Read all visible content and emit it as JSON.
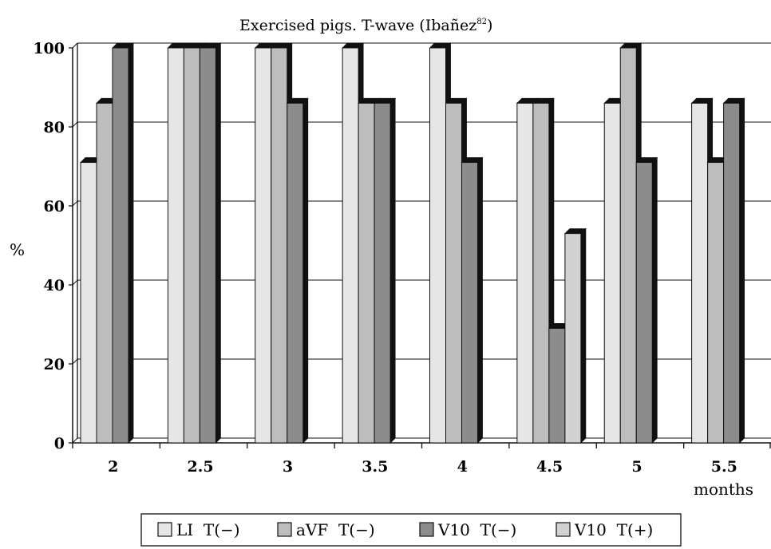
{
  "chart_data": {
    "type": "bar",
    "title": "Exercised pigs. T-wave (Ibañez",
    "title_sup": "82",
    "title_close": ")",
    "ylabel": "%",
    "xlabel": "months",
    "ylim": [
      0,
      100
    ],
    "yticks": [
      0,
      20,
      40,
      60,
      80,
      100
    ],
    "grid": true,
    "legend_position": "bottom",
    "categories": [
      "2",
      "2.5",
      "3",
      "3.5",
      "4",
      "4.5",
      "5",
      "5.5"
    ],
    "series": [
      {
        "name": "LI  T(−)",
        "color": "#e6e6e6",
        "values": [
          71,
          100,
          100,
          100,
          100,
          86,
          86,
          86
        ]
      },
      {
        "name": "aVF  T(−)",
        "color": "#bdbdbd",
        "values": [
          86,
          100,
          100,
          86,
          86,
          86,
          100,
          71
        ]
      },
      {
        "name": "V10  T(−)",
        "color": "#8c8c8c",
        "values": [
          100,
          100,
          86,
          86,
          71,
          29,
          71,
          86
        ]
      },
      {
        "name": "V10  T(+)",
        "color": "#d2d2d2",
        "values": [
          null,
          null,
          null,
          null,
          null,
          53,
          null,
          null
        ]
      }
    ]
  }
}
